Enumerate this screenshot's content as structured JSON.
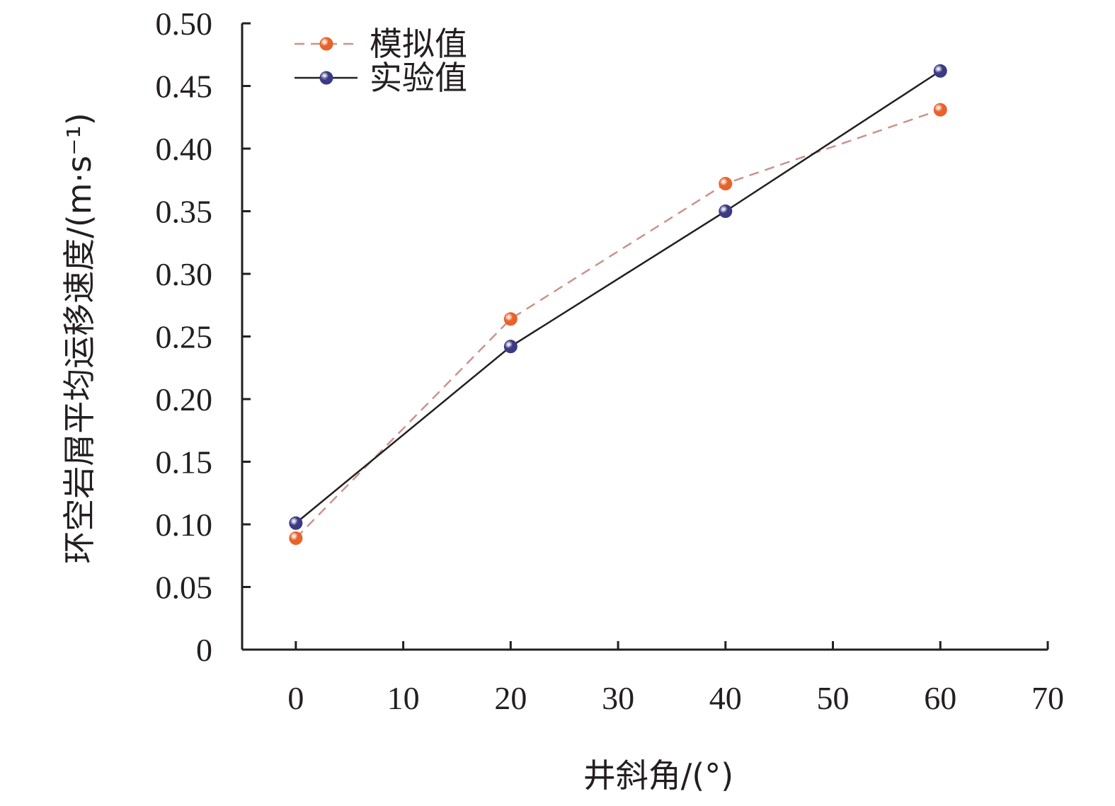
{
  "chart_data": {
    "type": "line",
    "xlabel": "井斜角/(°)",
    "ylabel": "环空岩屑平均运移速度/(m·s⁻¹)",
    "xlim": [
      -5,
      70
    ],
    "ylim": [
      0,
      0.5
    ],
    "xticks": [
      0,
      10,
      20,
      30,
      40,
      50,
      60,
      70
    ],
    "yticks": [
      0,
      0.05,
      0.1,
      0.15,
      0.2,
      0.25,
      0.3,
      0.35,
      0.4,
      0.45,
      0.5
    ],
    "xtick_labels": [
      "0",
      "10",
      "20",
      "30",
      "40",
      "50",
      "60",
      "70"
    ],
    "ytick_labels": [
      "0",
      "0.05",
      "0.10",
      "0.15",
      "0.20",
      "0.25",
      "0.30",
      "0.35",
      "0.40",
      "0.45",
      "0.50"
    ],
    "grid": false,
    "legend_position": "top-left",
    "x": [
      0,
      20,
      40,
      60
    ],
    "series": [
      {
        "name": "模拟值",
        "values": [
          0.089,
          0.264,
          0.372,
          0.431
        ],
        "color": "#e8622a",
        "line_style": "dashed",
        "line_color": "#c9948e"
      },
      {
        "name": "实验值",
        "values": [
          0.101,
          0.242,
          0.35,
          0.462
        ],
        "color": "#3b3a85",
        "line_style": "solid",
        "line_color": "#231f20"
      }
    ]
  }
}
